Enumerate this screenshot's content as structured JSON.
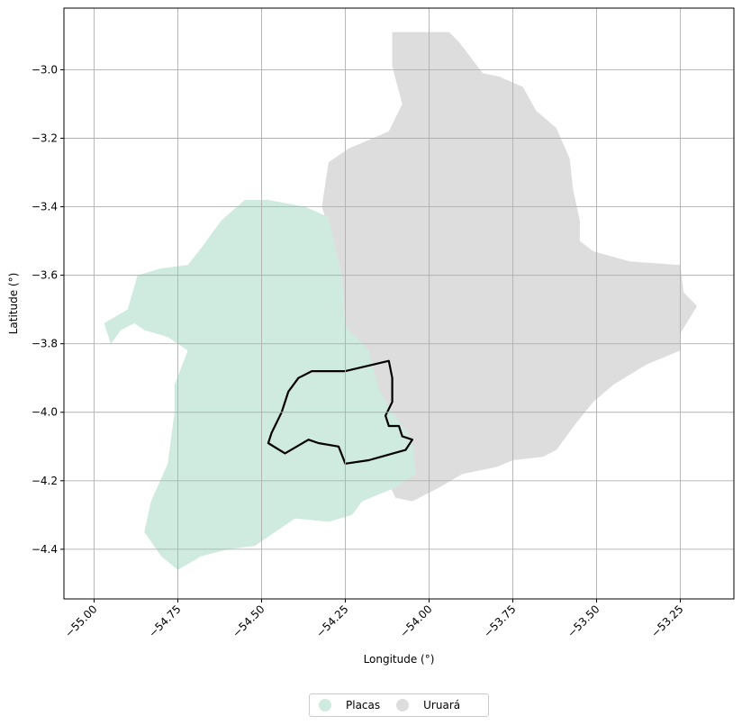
{
  "chart_data": {
    "type": "map",
    "xlabel": "Longitude (°)",
    "ylabel": "Latitude (°)",
    "xlim": [
      -55.09,
      -53.09
    ],
    "ylim": [
      -4.545,
      -2.82
    ],
    "grid": true,
    "x_ticks": [
      -55.0,
      -54.75,
      -54.5,
      -54.25,
      -54.0,
      -53.75,
      -53.5,
      -53.25
    ],
    "x_tick_labels": [
      "−55.00",
      "−54.75",
      "−54.50",
      "−54.25",
      "−54.00",
      "−53.75",
      "−53.50",
      "−53.25"
    ],
    "y_ticks": [
      -3.0,
      -3.2,
      -3.4,
      -3.6,
      -3.8,
      -4.0,
      -4.2,
      -4.4
    ],
    "y_tick_labels": [
      "−3.0",
      "−3.2",
      "−3.4",
      "−3.6",
      "−3.8",
      "−4.0",
      "−4.2",
      "−4.4"
    ],
    "regions": [
      {
        "name": "Uruará",
        "color": "#dddddd",
        "polygon": [
          [
            -54.11,
            -2.89
          ],
          [
            -53.94,
            -2.89
          ],
          [
            -53.91,
            -2.92
          ],
          [
            -53.84,
            -3.01
          ],
          [
            -53.79,
            -3.02
          ],
          [
            -53.72,
            -3.05
          ],
          [
            -53.68,
            -3.12
          ],
          [
            -53.62,
            -3.17
          ],
          [
            -53.58,
            -3.26
          ],
          [
            -53.57,
            -3.35
          ],
          [
            -53.55,
            -3.44
          ],
          [
            -53.55,
            -3.5
          ],
          [
            -53.51,
            -3.53
          ],
          [
            -53.4,
            -3.56
          ],
          [
            -53.25,
            -3.57
          ],
          [
            -53.24,
            -3.65
          ],
          [
            -53.2,
            -3.69
          ],
          [
            -53.25,
            -3.77
          ],
          [
            -53.25,
            -3.82
          ],
          [
            -53.35,
            -3.86
          ],
          [
            -53.45,
            -3.92
          ],
          [
            -53.51,
            -3.97
          ],
          [
            -53.56,
            -4.03
          ],
          [
            -53.62,
            -4.11
          ],
          [
            -53.66,
            -4.13
          ],
          [
            -53.75,
            -4.14
          ],
          [
            -53.8,
            -4.16
          ],
          [
            -53.9,
            -4.18
          ],
          [
            -53.97,
            -4.22
          ],
          [
            -54.05,
            -4.26
          ],
          [
            -54.1,
            -4.25
          ],
          [
            -54.15,
            -4.15
          ],
          [
            -54.18,
            -4.0
          ],
          [
            -54.22,
            -3.87
          ],
          [
            -54.25,
            -3.75
          ],
          [
            -54.26,
            -3.61
          ],
          [
            -54.28,
            -3.52
          ],
          [
            -54.32,
            -3.4
          ],
          [
            -54.3,
            -3.27
          ],
          [
            -54.24,
            -3.23
          ],
          [
            -54.12,
            -3.18
          ],
          [
            -54.08,
            -3.1
          ],
          [
            -54.11,
            -2.99
          ]
        ]
      },
      {
        "name": "Placas",
        "color": "#cfeade",
        "polygon": [
          [
            -54.55,
            -3.38
          ],
          [
            -54.48,
            -3.38
          ],
          [
            -54.37,
            -3.4
          ],
          [
            -54.3,
            -3.43
          ],
          [
            -54.26,
            -3.61
          ],
          [
            -54.25,
            -3.75
          ],
          [
            -54.18,
            -3.82
          ],
          [
            -54.15,
            -3.93
          ],
          [
            -54.11,
            -4.0
          ],
          [
            -54.05,
            -4.08
          ],
          [
            -54.04,
            -4.18
          ],
          [
            -54.1,
            -4.22
          ],
          [
            -54.2,
            -4.26
          ],
          [
            -54.23,
            -4.3
          ],
          [
            -54.3,
            -4.32
          ],
          [
            -54.4,
            -4.31
          ],
          [
            -54.46,
            -4.35
          ],
          [
            -54.52,
            -4.39
          ],
          [
            -54.6,
            -4.4
          ],
          [
            -54.68,
            -4.42
          ],
          [
            -54.75,
            -4.46
          ],
          [
            -54.8,
            -4.42
          ],
          [
            -54.85,
            -4.35
          ],
          [
            -54.83,
            -4.26
          ],
          [
            -54.78,
            -4.15
          ],
          [
            -54.76,
            -4.0
          ],
          [
            -54.76,
            -3.92
          ],
          [
            -54.72,
            -3.82
          ],
          [
            -54.78,
            -3.78
          ],
          [
            -54.85,
            -3.76
          ],
          [
            -54.88,
            -3.74
          ],
          [
            -54.92,
            -3.76
          ],
          [
            -54.95,
            -3.8
          ],
          [
            -54.97,
            -3.74
          ],
          [
            -54.9,
            -3.7
          ],
          [
            -54.87,
            -3.6
          ],
          [
            -54.8,
            -3.58
          ],
          [
            -54.72,
            -3.57
          ],
          [
            -54.68,
            -3.52
          ],
          [
            -54.62,
            -3.44
          ]
        ]
      }
    ],
    "highlight_outline": {
      "color": "#000000",
      "polygon": [
        [
          -54.35,
          -3.88
        ],
        [
          -54.25,
          -3.88
        ],
        [
          -54.12,
          -3.85
        ],
        [
          -54.11,
          -3.9
        ],
        [
          -54.11,
          -3.97
        ],
        [
          -54.13,
          -4.01
        ],
        [
          -54.12,
          -4.04
        ],
        [
          -54.09,
          -4.04
        ],
        [
          -54.08,
          -4.07
        ],
        [
          -54.05,
          -4.08
        ],
        [
          -54.07,
          -4.11
        ],
        [
          -54.18,
          -4.14
        ],
        [
          -54.25,
          -4.15
        ],
        [
          -54.27,
          -4.1
        ],
        [
          -54.33,
          -4.09
        ],
        [
          -54.36,
          -4.08
        ],
        [
          -54.43,
          -4.12
        ],
        [
          -54.48,
          -4.09
        ],
        [
          -54.47,
          -4.06
        ],
        [
          -54.44,
          -4.0
        ],
        [
          -54.42,
          -3.94
        ],
        [
          -54.39,
          -3.9
        ]
      ]
    }
  },
  "legend": {
    "items": [
      {
        "label": "Placas",
        "color": "#cfeade"
      },
      {
        "label": "Uruará",
        "color": "#dddddd"
      }
    ]
  }
}
